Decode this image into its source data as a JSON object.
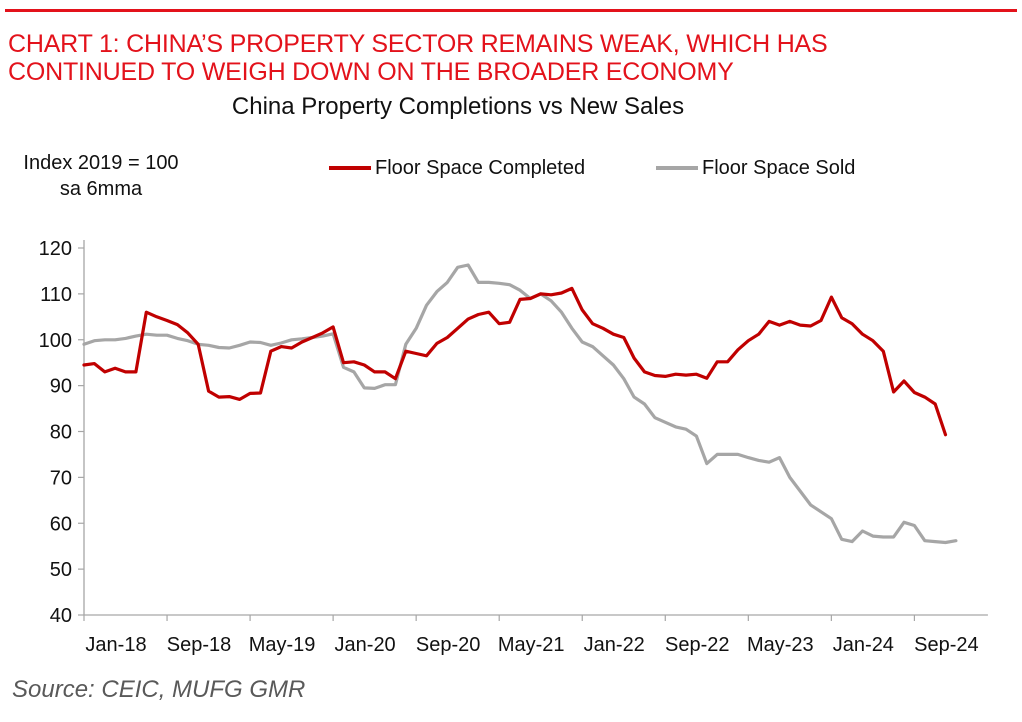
{
  "header": {
    "headline_line1": "CHART 1: CHINA’S PROPERTY SECTOR REMAINS WEAK, WHICH HAS",
    "headline_line2": "CONTINUED TO WEIGH DOWN ON THE BROADER ECONOMY",
    "brand_color": "#e3121b"
  },
  "footer": {
    "source": "Source: CEIC, MUFG GMR"
  },
  "chart_data": {
    "type": "line",
    "title": "China Property Completions vs New Sales",
    "ylabel_line1": "Index 2019 = 100",
    "ylabel_line2": "sa 6mma",
    "xlabel": "",
    "ylim": [
      40,
      120
    ],
    "yticks": [
      40,
      50,
      60,
      70,
      80,
      90,
      100,
      110,
      120
    ],
    "grid": false,
    "legend_position": "top",
    "x_start": "Jan-18",
    "x_frequency": "monthly",
    "xticks": [
      {
        "label": "Jan-18",
        "index": 0
      },
      {
        "label": "Sep-18",
        "index": 8
      },
      {
        "label": "May-19",
        "index": 16
      },
      {
        "label": "Jan-20",
        "index": 24
      },
      {
        "label": "Sep-20",
        "index": 32
      },
      {
        "label": "May-21",
        "index": 40
      },
      {
        "label": "Jan-22",
        "index": 48
      },
      {
        "label": "Sep-22",
        "index": 56
      },
      {
        "label": "May-23",
        "index": 64
      },
      {
        "label": "Jan-24",
        "index": 72
      },
      {
        "label": "Sep-24",
        "index": 80
      }
    ],
    "series": [
      {
        "name": "Floor Space Completed",
        "color": "#c00000",
        "values": [
          94.5,
          94.8,
          93.0,
          93.8,
          93.0,
          93.0,
          106.0,
          105.0,
          104.2,
          103.3,
          101.5,
          99.0,
          88.8,
          87.5,
          87.6,
          87.0,
          88.3,
          88.4,
          97.5,
          98.5,
          98.2,
          99.5,
          100.5,
          101.5,
          102.8,
          95.0,
          95.2,
          94.5,
          93.0,
          93.0,
          91.5,
          97.5,
          97.0,
          96.5,
          99.2,
          100.5,
          102.5,
          104.5,
          105.5,
          106.0,
          103.5,
          103.8,
          108.8,
          109.0,
          110.0,
          109.8,
          110.2,
          111.2,
          106.5,
          103.5,
          102.5,
          101.2,
          100.5,
          96.0,
          93.0,
          92.2,
          92.0,
          92.5,
          92.3,
          92.5,
          91.6,
          95.2,
          95.2,
          97.8,
          99.8,
          101.2,
          104.0,
          103.2,
          104.0,
          103.2,
          103.0,
          104.2,
          109.3,
          104.8,
          103.5,
          101.2,
          99.8,
          97.5,
          88.6,
          91.0,
          88.5,
          87.5,
          86.0,
          79.3
        ]
      },
      {
        "name": "Floor Space Sold",
        "color": "#a6a6a6",
        "values": [
          99.0,
          99.8,
          100.0,
          100.0,
          100.3,
          100.8,
          101.2,
          101.0,
          101.0,
          100.3,
          99.8,
          99.0,
          98.8,
          98.3,
          98.2,
          98.8,
          99.5,
          99.4,
          98.8,
          99.3,
          100.0,
          100.2,
          100.5,
          100.8,
          101.3,
          94.0,
          93.0,
          89.5,
          89.4,
          90.2,
          90.2,
          99.0,
          102.5,
          107.5,
          110.5,
          112.5,
          115.8,
          116.3,
          112.5,
          112.5,
          112.3,
          112.0,
          110.8,
          109.0,
          110.0,
          108.5,
          106.0,
          102.5,
          99.5,
          98.5,
          96.5,
          94.5,
          91.5,
          87.5,
          86.0,
          83.0,
          82.0,
          81.0,
          80.5,
          79.0,
          73.0,
          75.0,
          75.0,
          75.0,
          74.3,
          73.7,
          73.3,
          74.3,
          70.0,
          67.0,
          64.0,
          62.5,
          61.0,
          56.5,
          56.0,
          58.3,
          57.2,
          57.0,
          57.0,
          60.2,
          59.5,
          56.2,
          56.0,
          55.8,
          56.2
        ]
      }
    ]
  }
}
